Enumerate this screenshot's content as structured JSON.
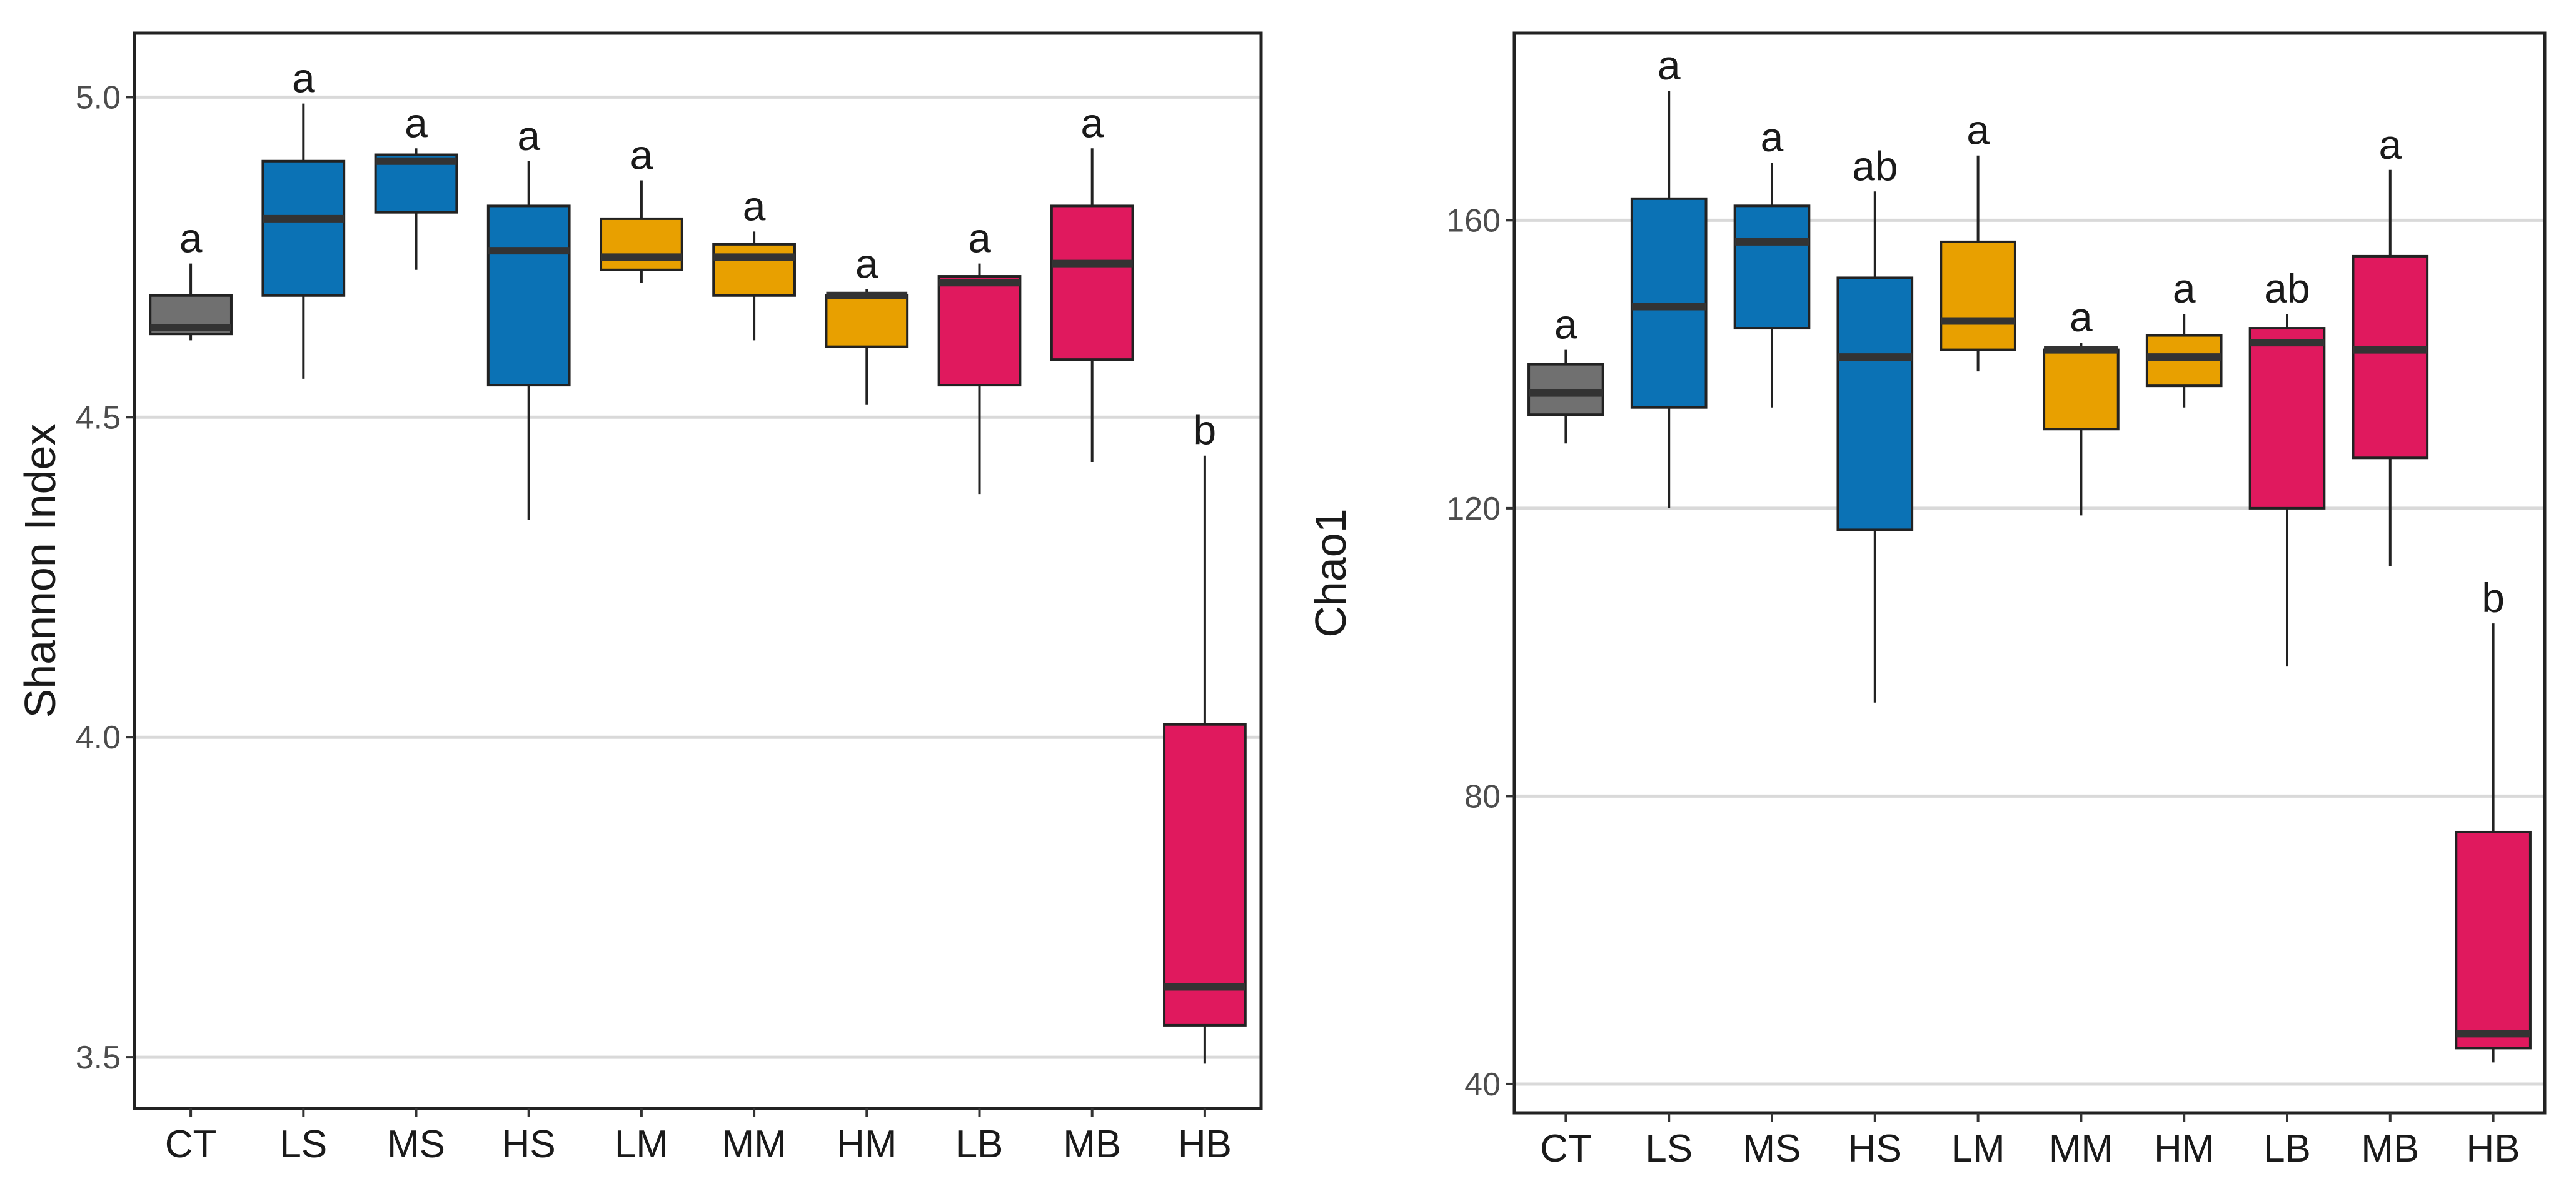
{
  "chart_data": [
    {
      "type": "boxplot",
      "title": "",
      "xlabel": "",
      "ylabel": "Shannon Index",
      "ylim": [
        3.42,
        5.1
      ],
      "y_ticks": [
        3.5,
        4.0,
        4.5,
        5.0
      ],
      "y_tick_labels": [
        "3.5",
        "4.0",
        "4.5",
        "5.0"
      ],
      "grid": "horizontal",
      "categories": [
        "CT",
        "LS",
        "MS",
        "HS",
        "LM",
        "MM",
        "HM",
        "LB",
        "MB",
        "HB"
      ],
      "group_colors": {
        "CT": "#707070",
        "LS": "#0b72b5",
        "MS": "#0b72b5",
        "HS": "#0b72b5",
        "LM": "#e8a000",
        "MM": "#e8a000",
        "HM": "#e8a000",
        "LB": "#e0195e",
        "MB": "#e0195e",
        "HB": "#e0195e"
      },
      "boxes": [
        {
          "category": "CT",
          "min": 4.62,
          "q1": 4.63,
          "median": 4.64,
          "q3": 4.69,
          "max": 4.74,
          "letter": "a"
        },
        {
          "category": "LS",
          "min": 4.56,
          "q1": 4.69,
          "median": 4.81,
          "q3": 4.9,
          "max": 4.99,
          "letter": "a"
        },
        {
          "category": "MS",
          "min": 4.73,
          "q1": 4.82,
          "median": 4.9,
          "q3": 4.91,
          "max": 4.92,
          "letter": "a"
        },
        {
          "category": "HS",
          "min": 4.34,
          "q1": 4.55,
          "median": 4.76,
          "q3": 4.83,
          "max": 4.9,
          "letter": "a"
        },
        {
          "category": "LM",
          "min": 4.71,
          "q1": 4.73,
          "median": 4.75,
          "q3": 4.81,
          "max": 4.87,
          "letter": "a"
        },
        {
          "category": "MM",
          "min": 4.62,
          "q1": 4.69,
          "median": 4.75,
          "q3": 4.77,
          "max": 4.79,
          "letter": "a"
        },
        {
          "category": "HM",
          "min": 4.52,
          "q1": 4.61,
          "median": 4.69,
          "q3": 4.69,
          "max": 4.7,
          "letter": "a"
        },
        {
          "category": "LB",
          "min": 4.38,
          "q1": 4.55,
          "median": 4.71,
          "q3": 4.72,
          "max": 4.74,
          "letter": "a"
        },
        {
          "category": "MB",
          "min": 4.43,
          "q1": 4.59,
          "median": 4.74,
          "q3": 4.83,
          "max": 4.92,
          "letter": "a"
        },
        {
          "category": "HB",
          "min": 3.49,
          "q1": 3.55,
          "median": 3.61,
          "q3": 4.02,
          "max": 4.44,
          "letter": "b"
        }
      ]
    },
    {
      "type": "boxplot",
      "title": "",
      "xlabel": "",
      "ylabel": "Chao1",
      "ylim": [
        36,
        186
      ],
      "y_ticks": [
        40,
        80,
        120,
        160
      ],
      "y_tick_labels": [
        "40",
        "80",
        "120",
        "160"
      ],
      "grid": "horizontal",
      "categories": [
        "CT",
        "LS",
        "MS",
        "HS",
        "LM",
        "MM",
        "HM",
        "LB",
        "MB",
        "HB"
      ],
      "group_colors": {
        "CT": "#707070",
        "LS": "#0b72b5",
        "MS": "#0b72b5",
        "HS": "#0b72b5",
        "LM": "#e8a000",
        "MM": "#e8a000",
        "HM": "#e8a000",
        "LB": "#e0195e",
        "MB": "#e0195e",
        "HB": "#e0195e"
      },
      "boxes": [
        {
          "category": "CT",
          "min": 129,
          "q1": 133,
          "median": 136,
          "q3": 140,
          "max": 142,
          "letter": "a"
        },
        {
          "category": "LS",
          "min": 120,
          "q1": 134,
          "median": 148,
          "q3": 163,
          "max": 178,
          "letter": "a"
        },
        {
          "category": "MS",
          "min": 134,
          "q1": 145,
          "median": 157,
          "q3": 162,
          "max": 168,
          "letter": "a"
        },
        {
          "category": "HS",
          "min": 93,
          "q1": 117,
          "median": 141,
          "q3": 152,
          "max": 164,
          "letter": "ab"
        },
        {
          "category": "LM",
          "min": 139,
          "q1": 142,
          "median": 146,
          "q3": 157,
          "max": 169,
          "letter": "a"
        },
        {
          "category": "MM",
          "min": 119,
          "q1": 131,
          "median": 142,
          "q3": 142,
          "max": 143,
          "letter": "a"
        },
        {
          "category": "HM",
          "min": 134,
          "q1": 137,
          "median": 141,
          "q3": 144,
          "max": 147,
          "letter": "a"
        },
        {
          "category": "LB",
          "min": 98,
          "q1": 120,
          "median": 143,
          "q3": 145,
          "max": 147,
          "letter": "ab"
        },
        {
          "category": "MB",
          "min": 112,
          "q1": 127,
          "median": 142,
          "q3": 155,
          "max": 167,
          "letter": "a"
        },
        {
          "category": "HB",
          "min": 43,
          "q1": 45,
          "median": 47,
          "q3": 75,
          "max": 104,
          "letter": "b"
        }
      ]
    }
  ]
}
